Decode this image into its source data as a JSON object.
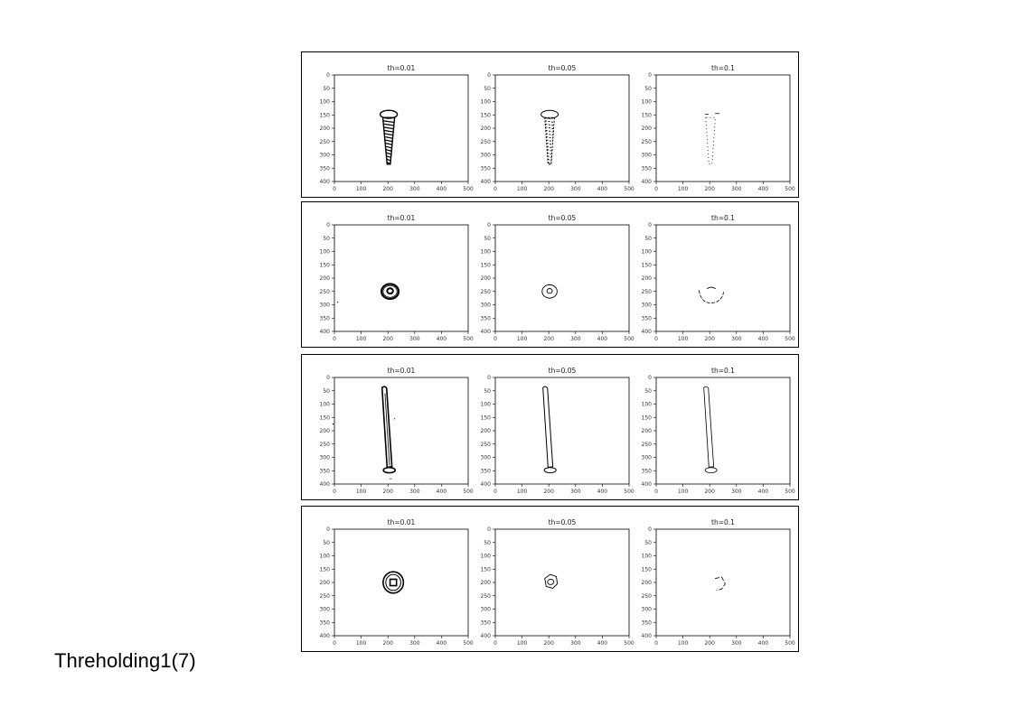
{
  "caption": "Threholding1(7)",
  "panel_titles": [
    "th=0.01",
    "th=0.05",
    "th=0.1"
  ],
  "x_ticks": [
    "0",
    "100",
    "200",
    "300",
    "400",
    "500"
  ],
  "y_ticks": [
    "0",
    "50",
    "100",
    "150",
    "200",
    "250",
    "300",
    "350",
    "400"
  ],
  "rows": [
    {
      "object": "screw",
      "panels": [
        "th=0.01",
        "th=0.05",
        "th=0.1"
      ]
    },
    {
      "object": "washer",
      "panels": [
        "th=0.01",
        "th=0.05",
        "th=0.1"
      ]
    },
    {
      "object": "nail",
      "panels": [
        "th=0.01",
        "th=0.05",
        "th=0.1"
      ]
    },
    {
      "object": "nut",
      "panels": [
        "th=0.01",
        "th=0.05",
        "th=0.1"
      ]
    }
  ]
}
